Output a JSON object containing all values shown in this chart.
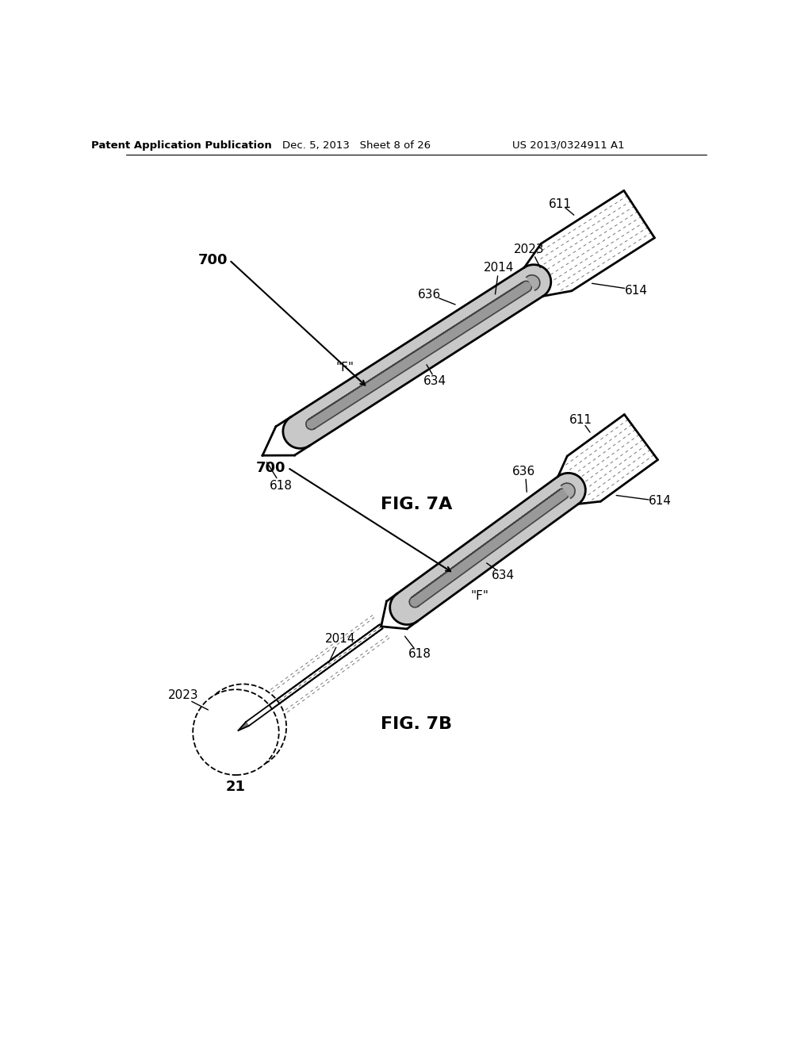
{
  "bg_color": "#ffffff",
  "header_left": "Patent Application Publication",
  "header_mid": "Dec. 5, 2013   Sheet 8 of 26",
  "header_right": "US 2013/0324911 A1",
  "fig7a_label": "FIG. 7A",
  "fig7b_label": "FIG. 7B"
}
